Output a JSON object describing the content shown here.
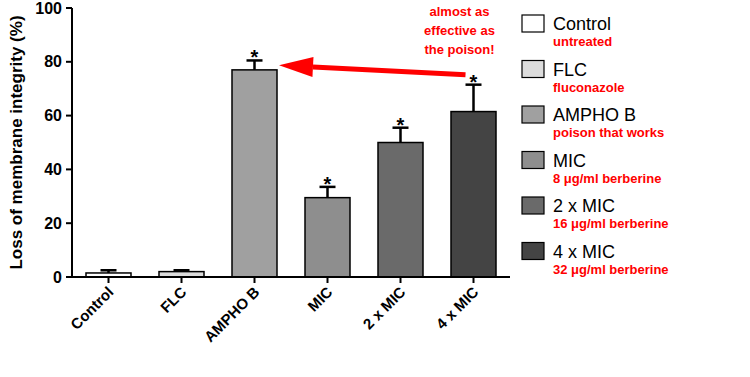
{
  "chart_data": {
    "type": "bar",
    "y_label": "Loss of membrane integrity (%)",
    "categories": [
      "Control",
      "FLC",
      "AMPHO B",
      "MIC",
      "2 x MIC",
      "4 x MIC"
    ],
    "values": [
      1.5,
      2,
      77,
      29.5,
      50,
      61.5
    ],
    "errors": [
      1,
      0.5,
      3.5,
      4,
      5.5,
      10
    ],
    "significance": [
      null,
      null,
      "*",
      "*",
      "*",
      "*"
    ],
    "colors": [
      "#ffffff",
      "#dcdcdc",
      "#a0a0a0",
      "#8e8e8e",
      "#6a6a6a",
      "#444444"
    ],
    "ylim": [
      0,
      100
    ],
    "yticks": [
      0,
      20,
      40,
      60,
      80,
      100
    ],
    "grid": false,
    "legend": "right",
    "legend_notes": [
      "untreated",
      "fluconazole",
      "poison that works",
      "8 μg/ml berberine",
      "16 μg/ml berberine",
      "32 μg/ml berberine"
    ],
    "annotation": [
      "almost as",
      "effective as",
      "the poison!"
    ]
  }
}
